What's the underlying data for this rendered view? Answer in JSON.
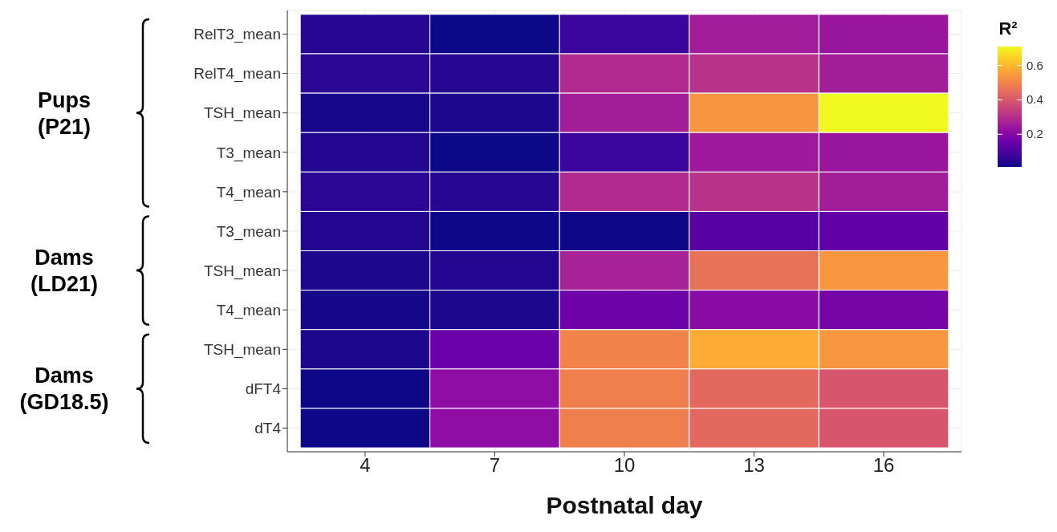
{
  "chart_data": {
    "type": "heatmap",
    "xlabel": "Postnatal day",
    "clabel": "R²",
    "categories": [
      "4",
      "7",
      "10",
      "13",
      "16"
    ],
    "y_categories": [
      "RelT3_mean",
      "RelT4_mean",
      "TSH_mean",
      "T3_mean",
      "T4_mean",
      "T3_mean",
      "TSH_mean",
      "T4_mean",
      "TSH_mean",
      "dFT4",
      "dT4"
    ],
    "cells": [
      [
        0.045,
        0.01,
        0.07,
        0.255,
        0.24
      ],
      [
        0.05,
        0.045,
        0.29,
        0.31,
        0.26
      ],
      [
        0.024,
        0.03,
        0.26,
        0.535,
        0.71
      ],
      [
        0.04,
        0.01,
        0.07,
        0.25,
        0.24
      ],
      [
        0.05,
        0.045,
        0.29,
        0.31,
        0.26
      ],
      [
        0.04,
        0.012,
        0.012,
        0.115,
        0.135
      ],
      [
        0.03,
        0.04,
        0.27,
        0.46,
        0.54
      ],
      [
        0.02,
        0.03,
        0.16,
        0.21,
        0.17
      ],
      [
        0.03,
        0.15,
        0.5,
        0.58,
        0.54
      ],
      [
        0.012,
        0.22,
        0.49,
        0.44,
        0.395
      ],
      [
        0.012,
        0.22,
        0.49,
        0.44,
        0.395
      ]
    ],
    "clim": [
      0.01,
      0.71
    ],
    "cticks": [
      0.2,
      0.4,
      0.6
    ],
    "grid": true,
    "annotations": [
      "Pups\n(P21)",
      "Dams\n(LD21)",
      "Dams\n(GD18.5)"
    ]
  }
}
